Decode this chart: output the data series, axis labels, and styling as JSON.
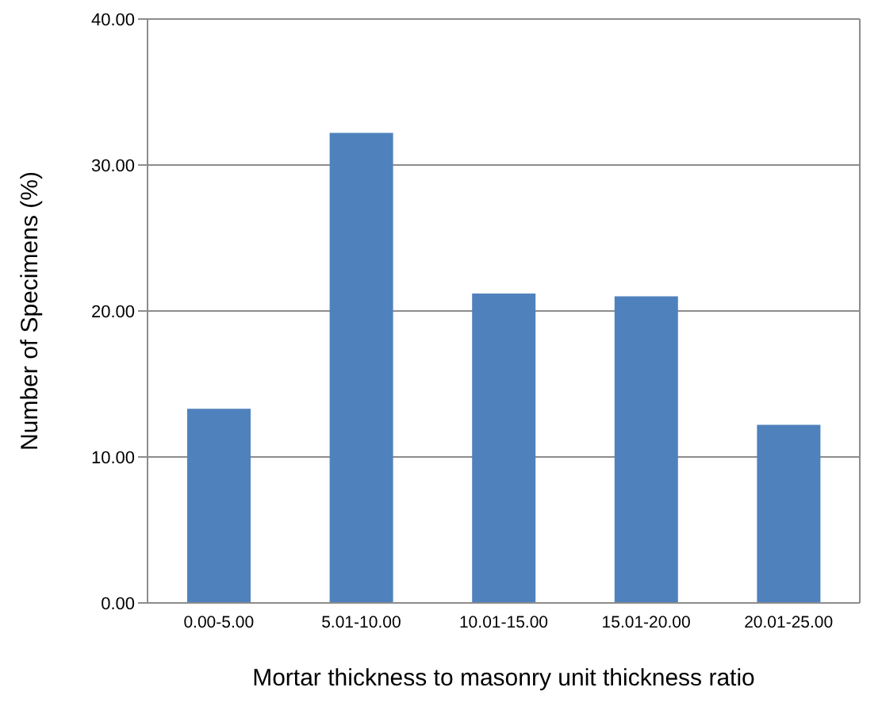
{
  "chart_data": {
    "type": "bar",
    "xlabel": "Mortar thickness to masonry unit thickness ratio",
    "ylabel": "Number of Specimens (%)",
    "categories": [
      "0.00-5.00",
      "5.01-10.00",
      "10.01-15.00",
      "15.01-20.00",
      "20.01-25.00"
    ],
    "values": [
      13.3,
      32.2,
      21.2,
      21.0,
      12.2
    ],
    "color": "#4f81bd",
    "ylim": [
      0,
      40
    ],
    "yticks": [
      {
        "value": 0,
        "label": "0.00"
      },
      {
        "value": 10,
        "label": "10.00"
      },
      {
        "value": 20,
        "label": "20.00"
      },
      {
        "value": 30,
        "label": "30.00"
      },
      {
        "value": 40,
        "label": "40.00"
      }
    ],
    "grid": "y",
    "legend": false
  }
}
